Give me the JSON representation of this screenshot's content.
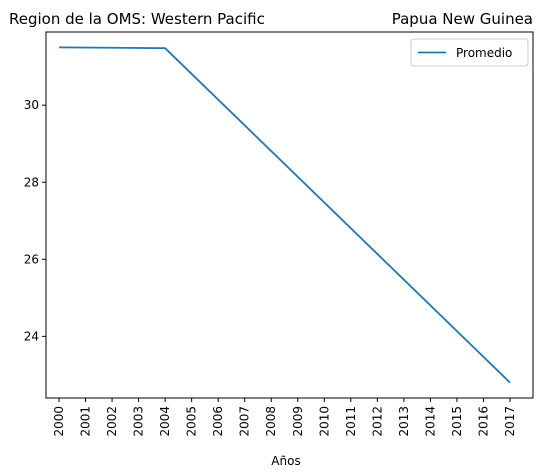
{
  "chart_data": {
    "type": "line",
    "title_left": "Region de la OMS: Western Pacific",
    "title_right": "Papua New Guinea",
    "xlabel": "Años",
    "ylabel": "",
    "x": [
      "2000",
      "2001",
      "2002",
      "2003",
      "2004",
      "2005",
      "2006",
      "2007",
      "2008",
      "2009",
      "2010",
      "2011",
      "2012",
      "2013",
      "2014",
      "2015",
      "2016",
      "2017"
    ],
    "series": [
      {
        "name": "Promedio",
        "color": "#1f77b4",
        "points": [
          {
            "x": "2000",
            "y": 31.5
          },
          {
            "x": "2004",
            "y": 31.48
          },
          {
            "x": "2017",
            "y": 22.8
          }
        ]
      }
    ],
    "ylim": [
      22.4,
      31.9
    ],
    "yticks": [
      24,
      26,
      28,
      30
    ],
    "grid": false,
    "legend_position": "top-right"
  }
}
